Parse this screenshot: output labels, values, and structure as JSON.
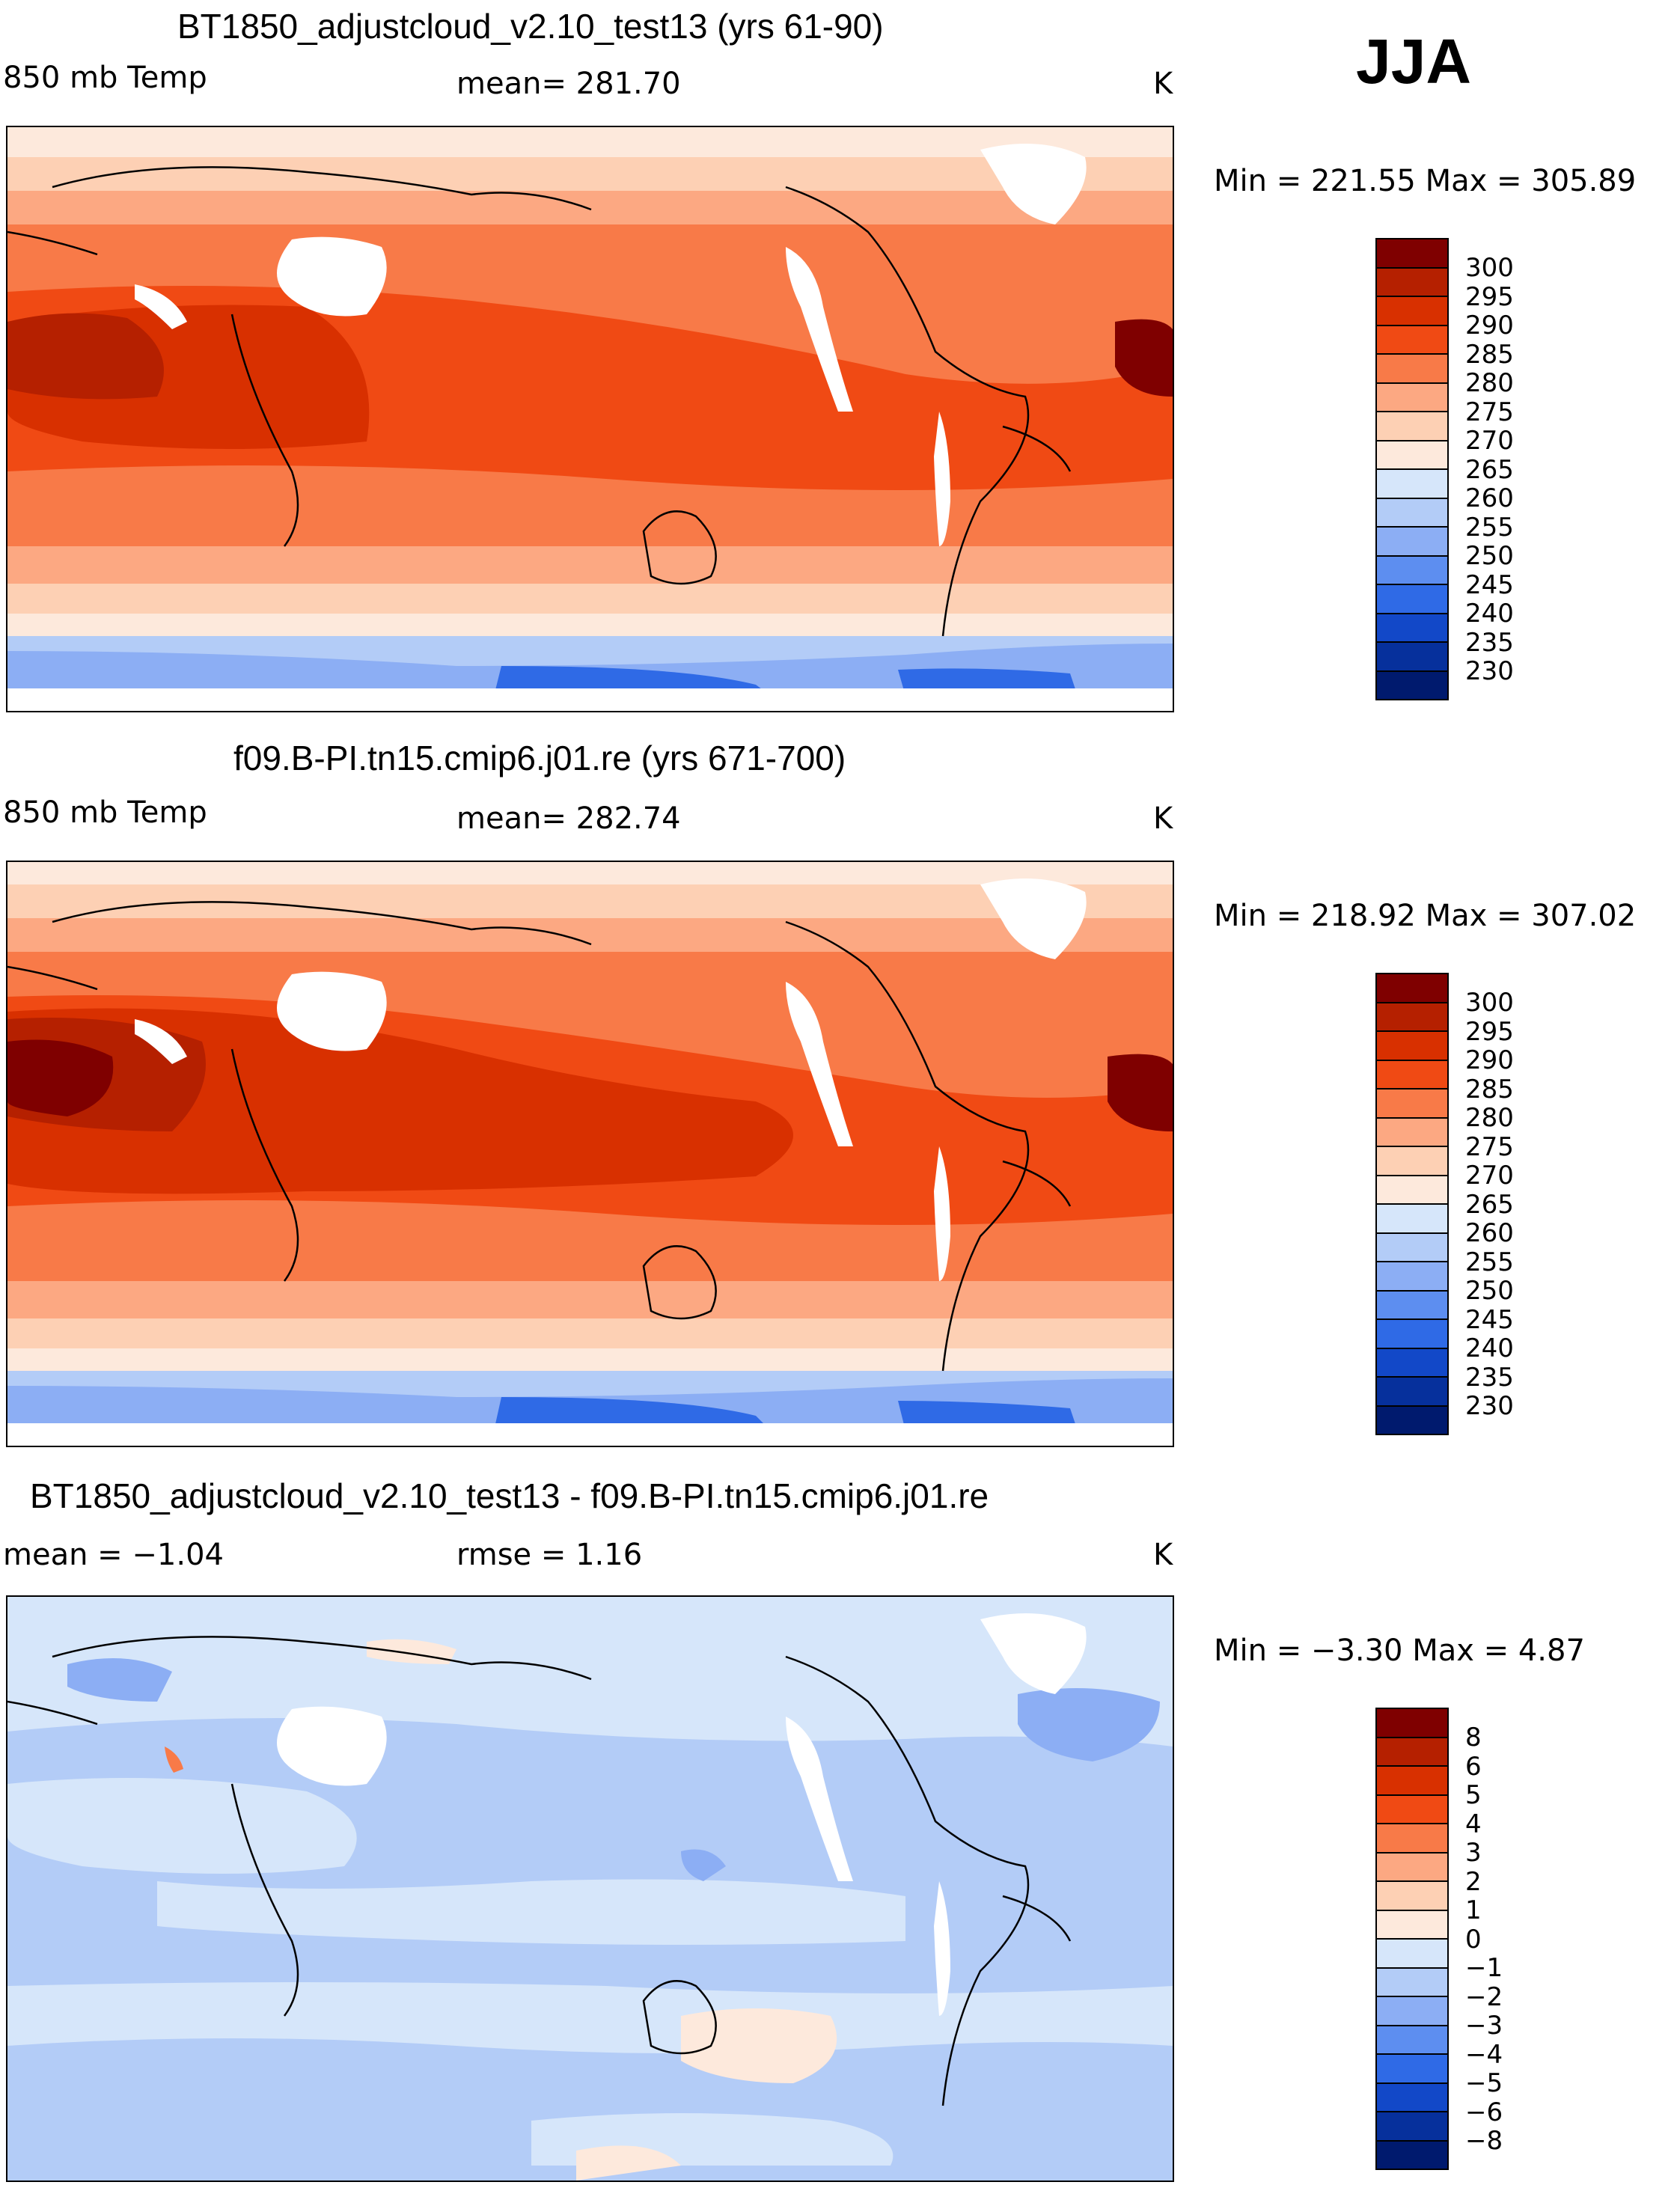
{
  "season": "JJA",
  "panels": [
    {
      "title": "BT1850_adjustcloud_v2.10_test13 (yrs 61-90)",
      "variable": "850 mb Temp",
      "stat": "mean=  281.70",
      "units": "K",
      "minmax": "Min  =  221.55  Max  =  305.89",
      "colorbar": {
        "labels": [
          "300",
          "295",
          "290",
          "285",
          "280",
          "275",
          "270",
          "265",
          "260",
          "255",
          "250",
          "245",
          "240",
          "235",
          "230"
        ],
        "colors": [
          "#7f0000",
          "#b52000",
          "#d83000",
          "#f04a14",
          "#f87a48",
          "#fca882",
          "#fdd0b4",
          "#fde9dc",
          "#d6e6fa",
          "#b3ccf7",
          "#8caef4",
          "#5d8ef0",
          "#2f6ae6",
          "#1248c8",
          "#06309c",
          "#001a6e"
        ]
      }
    },
    {
      "title": "f09.B-PI.tn15.cmip6.j01.re (yrs 671-700)",
      "variable": "850 mb Temp",
      "stat": "mean=  282.74",
      "units": "K",
      "minmax": "Min  =  218.92  Max  =  307.02",
      "colorbar": {
        "labels": [
          "300",
          "295",
          "290",
          "285",
          "280",
          "275",
          "270",
          "265",
          "260",
          "255",
          "250",
          "245",
          "240",
          "235",
          "230"
        ],
        "colors": [
          "#7f0000",
          "#b52000",
          "#d83000",
          "#f04a14",
          "#f87a48",
          "#fca882",
          "#fdd0b4",
          "#fde9dc",
          "#d6e6fa",
          "#b3ccf7",
          "#8caef4",
          "#5d8ef0",
          "#2f6ae6",
          "#1248c8",
          "#06309c",
          "#001a6e"
        ]
      }
    },
    {
      "title": "BT1850_adjustcloud_v2.10_test13 - f09.B-PI.tn15.cmip6.j01.re",
      "variable": "mean  =   −1.04",
      "stat": "rmse  =    1.16",
      "units": "K",
      "minmax": "Min  =   −3.30  Max  =     4.87",
      "colorbar": {
        "labels": [
          "8",
          "6",
          "5",
          "4",
          "3",
          "2",
          "1",
          "0",
          "−1",
          "−2",
          "−3",
          "−4",
          "−5",
          "−6",
          "−8"
        ],
        "colors": [
          "#7f0000",
          "#b52000",
          "#d83000",
          "#f04a14",
          "#f87a48",
          "#fca882",
          "#fdd0b4",
          "#fde9dc",
          "#d6e6fa",
          "#b3ccf7",
          "#8caef4",
          "#5d8ef0",
          "#2f6ae6",
          "#1248c8",
          "#06309c",
          "#001a6e"
        ]
      }
    }
  ]
}
